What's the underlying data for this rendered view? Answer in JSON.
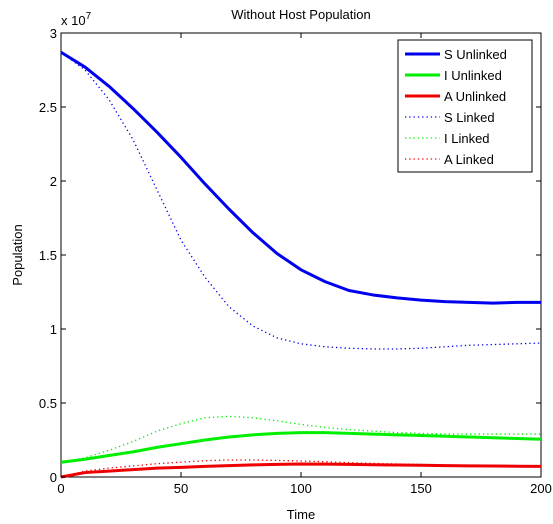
{
  "chart_data": {
    "type": "line",
    "title": "Without Host Population",
    "xlabel": "Time",
    "ylabel": "Population",
    "y_exponent_label": "x 10",
    "y_exponent_power": "7",
    "xlim": [
      0,
      200
    ],
    "ylim": [
      0,
      3
    ],
    "y_scale_factor": 10000000,
    "x_ticks": [
      0,
      50,
      100,
      150,
      200
    ],
    "x_tick_labels": [
      "0",
      "50",
      "100",
      "150",
      "200"
    ],
    "y_ticks": [
      0,
      0.5,
      1,
      1.5,
      2,
      2.5,
      3
    ],
    "y_tick_labels": [
      "0",
      "0.5",
      "1",
      "1.5",
      "2",
      "2.5",
      "3"
    ],
    "grid": false,
    "legend_position": "top-right",
    "series": [
      {
        "name": "S Unlinked",
        "color": "#0000ee",
        "style": "solid",
        "x": [
          0,
          10,
          20,
          30,
          40,
          50,
          60,
          70,
          80,
          90,
          100,
          110,
          120,
          130,
          140,
          150,
          160,
          170,
          180,
          190,
          200
        ],
        "y": [
          2.87,
          2.77,
          2.64,
          2.49,
          2.33,
          2.16,
          1.98,
          1.81,
          1.65,
          1.51,
          1.4,
          1.32,
          1.26,
          1.23,
          1.21,
          1.195,
          1.185,
          1.18,
          1.175,
          1.18,
          1.18
        ]
      },
      {
        "name": "I Unlinked",
        "color": "#00ee00",
        "style": "solid",
        "x": [
          0,
          10,
          20,
          30,
          40,
          50,
          60,
          70,
          80,
          90,
          100,
          110,
          120,
          130,
          140,
          150,
          160,
          170,
          180,
          190,
          200
        ],
        "y": [
          0.1,
          0.12,
          0.145,
          0.17,
          0.2,
          0.225,
          0.25,
          0.27,
          0.285,
          0.295,
          0.3,
          0.3,
          0.295,
          0.29,
          0.285,
          0.28,
          0.275,
          0.27,
          0.265,
          0.26,
          0.255
        ]
      },
      {
        "name": "A Unlinked",
        "color": "#ee0000",
        "style": "solid",
        "x": [
          0,
          10,
          20,
          30,
          40,
          50,
          60,
          70,
          80,
          90,
          100,
          110,
          120,
          130,
          140,
          150,
          160,
          170,
          180,
          190,
          200
        ],
        "y": [
          0.0,
          0.03,
          0.04,
          0.05,
          0.06,
          0.065,
          0.072,
          0.077,
          0.082,
          0.085,
          0.088,
          0.087,
          0.085,
          0.083,
          0.081,
          0.079,
          0.077,
          0.075,
          0.074,
          0.073,
          0.072
        ]
      },
      {
        "name": "S Linked",
        "color": "#0000ee",
        "style": "dotted",
        "x": [
          0,
          10,
          20,
          30,
          40,
          50,
          60,
          70,
          80,
          90,
          100,
          110,
          120,
          130,
          140,
          150,
          160,
          170,
          180,
          190,
          200
        ],
        "y": [
          2.87,
          2.75,
          2.55,
          2.28,
          1.94,
          1.6,
          1.35,
          1.15,
          1.02,
          0.94,
          0.9,
          0.88,
          0.87,
          0.865,
          0.865,
          0.87,
          0.88,
          0.89,
          0.895,
          0.9,
          0.905
        ]
      },
      {
        "name": "I Linked",
        "color": "#00ee00",
        "style": "dotted",
        "x": [
          0,
          10,
          20,
          30,
          40,
          50,
          60,
          70,
          80,
          90,
          100,
          110,
          120,
          130,
          140,
          150,
          160,
          170,
          180,
          190,
          200
        ],
        "y": [
          0.1,
          0.13,
          0.18,
          0.24,
          0.31,
          0.36,
          0.4,
          0.41,
          0.4,
          0.38,
          0.355,
          0.335,
          0.32,
          0.31,
          0.3,
          0.295,
          0.29,
          0.29,
          0.29,
          0.29,
          0.29
        ]
      },
      {
        "name": "A Linked",
        "color": "#ee0000",
        "style": "dotted",
        "x": [
          0,
          10,
          20,
          30,
          40,
          50,
          60,
          70,
          80,
          90,
          100,
          110,
          120,
          130,
          140,
          150,
          160,
          170,
          180,
          190,
          200
        ],
        "y": [
          0.0,
          0.04,
          0.06,
          0.075,
          0.09,
          0.1,
          0.11,
          0.115,
          0.115,
          0.112,
          0.108,
          0.103,
          0.097,
          0.092,
          0.088,
          0.085,
          0.082,
          0.08,
          0.078,
          0.077,
          0.076
        ]
      }
    ]
  }
}
